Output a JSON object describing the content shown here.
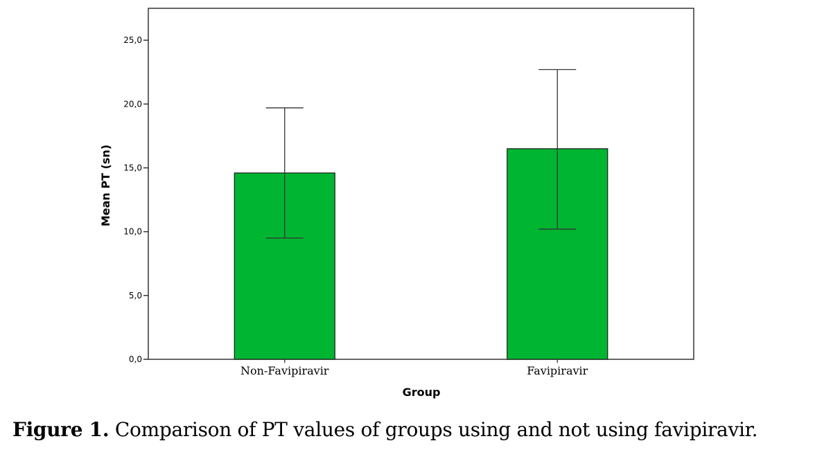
{
  "chart_data": {
    "type": "bar",
    "categories": [
      "Non-Favipiravir",
      "Favipiravir"
    ],
    "values": [
      14.6,
      16.5
    ],
    "error_bars": {
      "upper": [
        19.7,
        22.7
      ],
      "lower": [
        9.5,
        10.2
      ]
    },
    "xlabel": "Group",
    "ylabel": "Mean PT (sn)",
    "ylim": [
      0,
      27.5
    ],
    "yticks": [
      "0,0",
      "5,0",
      "10,0",
      "15,0",
      "20,0",
      "25,0"
    ],
    "ytick_values": [
      0,
      5,
      10,
      15,
      20,
      25
    ],
    "grid": false,
    "colors": {
      "bar_fill": "#00b531",
      "bar_stroke": "#1a1a1a",
      "axis": "#333333"
    }
  },
  "caption": {
    "label": "Figure 1.",
    "text": " Comparison of PT values of groups using and not using favipiravir."
  }
}
